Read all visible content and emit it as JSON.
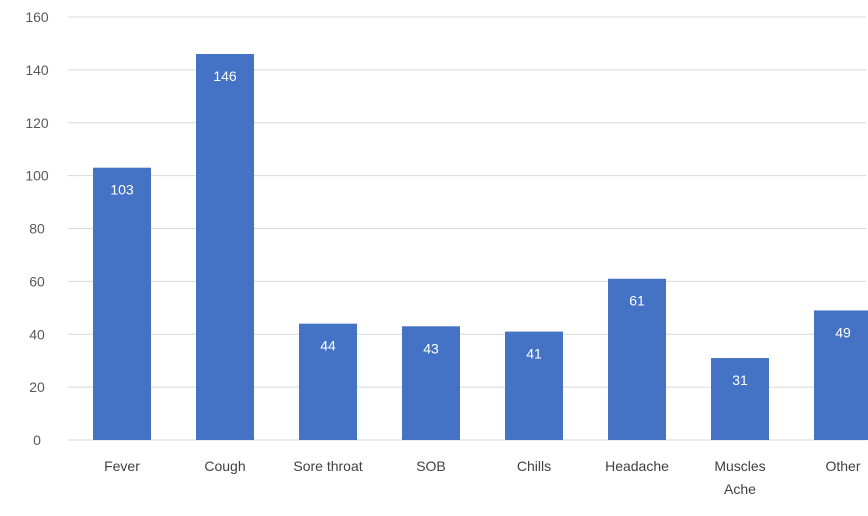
{
  "chart_data": {
    "type": "bar",
    "categories": [
      "Fever",
      "Cough",
      "Sore throat",
      "SOB",
      "Chills",
      "Headache",
      "Muscles Ache",
      "Other"
    ],
    "values": [
      103,
      146,
      44,
      43,
      41,
      61,
      31,
      49
    ],
    "ylim": [
      0,
      160
    ],
    "yticks": [
      0,
      20,
      40,
      60,
      80,
      100,
      120,
      140,
      160
    ],
    "grid": true,
    "legend": "none",
    "data_labels": true,
    "bar_color": "#4472C4",
    "grid_color": "#D9D9D9",
    "label_color": "#FFFFFF"
  }
}
